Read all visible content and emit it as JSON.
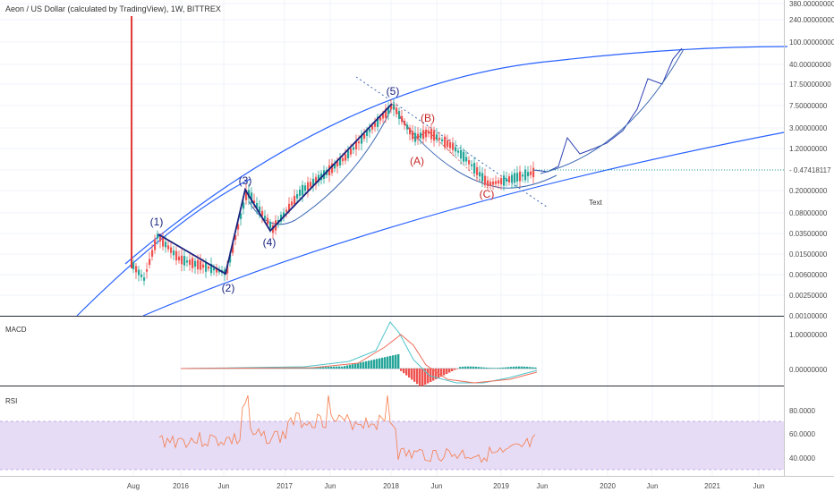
{
  "chart_data": {
    "type": "candlestick",
    "title": "Aeon / US Dollar (calculated by TradingView), 1W, BITTREX",
    "colors": {
      "up": "#26a69a",
      "down": "#ef5350",
      "wave": "#1a237e",
      "corrective": "#c62828",
      "channel": "#2962ff",
      "rsi": "#f57c4a",
      "rsi_band": "#e6dcf5",
      "macd_line": "#4fc3c9",
      "signal_line": "#ef6c5a"
    },
    "x_axis": {
      "labels": [
        "Aug",
        "2016",
        "Jun",
        "2017",
        "Jun",
        "2018",
        "Jun",
        "2019",
        "Jun",
        "2020",
        "Jun",
        "2021",
        "Jun"
      ]
    },
    "price_axis": {
      "scale": "log",
      "ticks": [
        "380.00000000",
        "240.00000000",
        "100.00000000",
        "40.00000000",
        "17.50000000",
        "7.50000000",
        "3.00000000",
        "1.20000000",
        "0.47418117",
        "0.20000000",
        "0.08000000",
        "0.03500000",
        "0.01500000",
        "0.00600000",
        "0.00250000",
        "0.00100000"
      ],
      "last_price": "0.47418117"
    },
    "wave_labels": {
      "impulse": [
        "(1)",
        "(2)",
        "(3)",
        "(4)",
        "(5)"
      ],
      "corrective": [
        "(A)",
        "(B)",
        "(C)"
      ]
    },
    "annotations": [
      "Text"
    ],
    "indicators": {
      "macd": {
        "label": "MACD",
        "ticks": [
          "1.00000000",
          "0.00000000"
        ]
      },
      "rsi": {
        "label": "RSI",
        "ticks": [
          "80.0000",
          "60.0000",
          "40.0000"
        ],
        "band": [
          30,
          70
        ]
      }
    }
  }
}
